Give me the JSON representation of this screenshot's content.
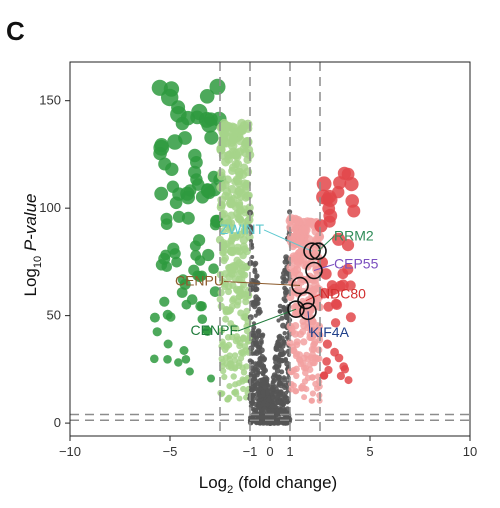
{
  "panel_letter": "C",
  "colors": {
    "down_strong": "#2e9a3e",
    "down_weak": "#a6d38a",
    "not_significant": "#555555",
    "up_weak": "#f2a1a1",
    "up_strong": "#e2474a",
    "guide_line": "#8c8c8c",
    "highlight_ring": "#111111"
  },
  "chart_data": {
    "type": "scatter",
    "title": "",
    "xlabel_main": "Log",
    "xlabel_sub": "2",
    "xlabel_rest": " (fold change)",
    "ylabel_main": "Log",
    "ylabel_sub": "10",
    "ylabel_italic": " P-value",
    "xlim": [
      -10,
      10
    ],
    "ylim": [
      -6,
      168
    ],
    "x_ticks": [
      {
        "value": -10,
        "label": "−10"
      },
      {
        "value": -5,
        "label": "−5"
      },
      {
        "value": -1,
        "label": "−1"
      },
      {
        "value": 0,
        "label": "0"
      },
      {
        "value": 1,
        "label": "1"
      },
      {
        "value": 5,
        "label": "5"
      },
      {
        "value": 10,
        "label": "10"
      }
    ],
    "y_ticks": [
      {
        "value": 0,
        "label": "0"
      },
      {
        "value": 50,
        "label": "50"
      },
      {
        "value": 100,
        "label": "100"
      },
      {
        "value": 150,
        "label": "150"
      }
    ],
    "vertical_thresholds": [
      -2.5,
      -1,
      1,
      2.5
    ],
    "horizontal_thresholds": [
      1.3,
      4
    ],
    "series": [
      {
        "key": "down_strong",
        "color": "#2e9a3e",
        "count": 90,
        "x_range": [
          -5.8,
          -2.5
        ],
        "y_range": [
          20,
          158
        ],
        "size_range": [
          4,
          9
        ]
      },
      {
        "key": "down_weak",
        "color": "#a6d38a",
        "count": 320,
        "x_range": [
          -2.5,
          -1
        ],
        "y_range": [
          10,
          140
        ],
        "size_range": [
          3,
          5
        ]
      },
      {
        "key": "not_significant",
        "color": "#555555",
        "count": 700,
        "x_range": [
          -1,
          1
        ],
        "y_range": [
          0,
          105
        ],
        "size_range": [
          2,
          3
        ]
      },
      {
        "key": "up_weak",
        "color": "#f2a1a1",
        "count": 240,
        "x_range": [
          1,
          2.5
        ],
        "y_range": [
          10,
          95
        ],
        "size_range": [
          3,
          5
        ]
      },
      {
        "key": "up_strong",
        "color": "#e2474a",
        "count": 45,
        "x_range": [
          2.5,
          4.2
        ],
        "y_range": [
          20,
          118
        ],
        "size_range": [
          4,
          8
        ]
      }
    ],
    "highlighted_genes": [
      {
        "name": "ZWINT",
        "x": 2.1,
        "y": 80,
        "color": "#5cc8cf",
        "label_x": -0.3,
        "label_y": 88
      },
      {
        "name": "RRM2",
        "x": 2.4,
        "y": 80,
        "color": "#2e8b57",
        "label_x": 3.2,
        "label_y": 85
      },
      {
        "name": "CEP55",
        "x": 2.2,
        "y": 71,
        "color": "#7b4fbf",
        "label_x": 3.2,
        "label_y": 72
      },
      {
        "name": "CENPU",
        "x": 1.5,
        "y": 64,
        "color": "#8b5a2b",
        "label_x": -2.3,
        "label_y": 64
      },
      {
        "name": "NDC80",
        "x": 1.8,
        "y": 57,
        "color": "#d12f2f",
        "label_x": 2.5,
        "label_y": 58
      },
      {
        "name": "CENPF",
        "x": 1.3,
        "y": 53,
        "color": "#1f7a3a",
        "label_x": -1.6,
        "label_y": 41
      },
      {
        "name": "KIF4A",
        "x": 1.9,
        "y": 52,
        "color": "#1f3f8a",
        "label_x": 2.0,
        "label_y": 40
      }
    ]
  }
}
